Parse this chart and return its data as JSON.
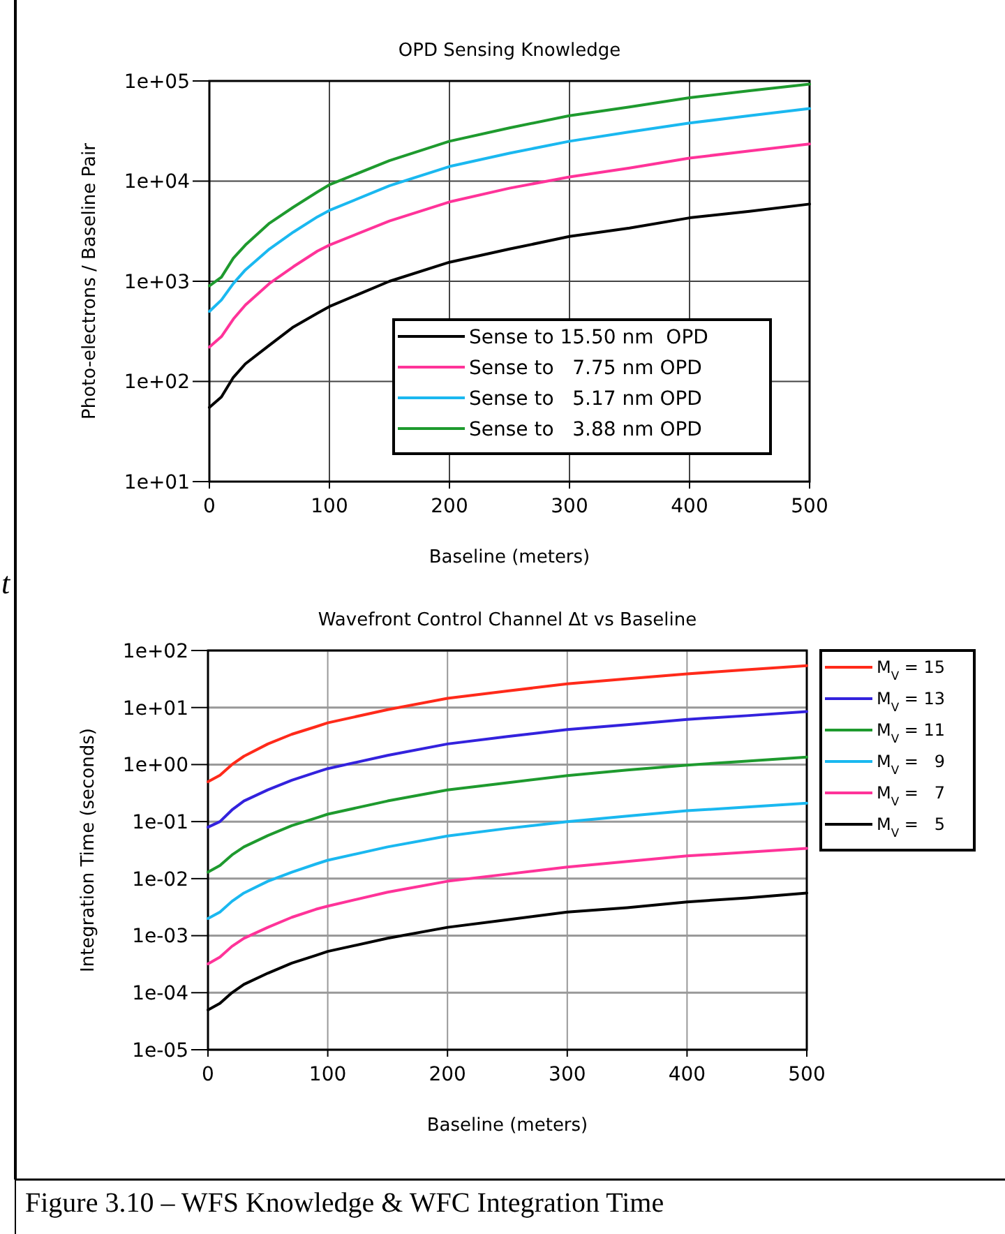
{
  "chart_data": [
    {
      "type": "line",
      "title": "OPD Sensing Knowledge",
      "xlabel": "Baseline (meters)",
      "ylabel": "Photo-electrons / Baseline Pair",
      "log": "y",
      "grid": true,
      "legend": "bottom right",
      "line_style": "solid",
      "marker": "none",
      "x": [
        0,
        10,
        20,
        30,
        50,
        70,
        90,
        100,
        150,
        200,
        250,
        300,
        350,
        400,
        450,
        500
      ],
      "xlim": [
        0,
        500
      ],
      "xticks": [
        0,
        100,
        200,
        300,
        400,
        500
      ],
      "ylim": [
        10,
        100000
      ],
      "yticks": [
        {
          "value": 10,
          "label": "1e+01"
        },
        {
          "value": 100,
          "label": "1e+02"
        },
        {
          "value": 1000,
          "label": "1e+03"
        },
        {
          "value": 10000,
          "label": "1e+04"
        },
        {
          "value": 100000,
          "label": "1e+05"
        }
      ],
      "annotations": [
        "t"
      ],
      "series": [
        {
          "name": "Sense to 15.50 nm  OPD",
          "color": "#000000",
          "values": [
            55,
            70,
            110,
            150,
            230,
            350,
            480,
            560,
            1000,
            1550,
            2100,
            2800,
            3400,
            4300,
            5000,
            5900
          ]
        },
        {
          "name": "Sense to   7.75 nm OPD",
          "color": "#ff3399",
          "values": [
            220,
            280,
            420,
            580,
            950,
            1400,
            2000,
            2300,
            4000,
            6200,
            8500,
            11000,
            13500,
            17000,
            20000,
            23500
          ]
        },
        {
          "name": "Sense to   5.17 nm OPD",
          "color": "#1ab8f0",
          "values": [
            500,
            650,
            950,
            1300,
            2100,
            3100,
            4400,
            5100,
            9000,
            14000,
            19000,
            25000,
            31000,
            38000,
            45000,
            53000
          ]
        },
        {
          "name": "Sense to   3.88 nm OPD",
          "color": "#1e9a2e",
          "values": [
            900,
            1100,
            1700,
            2300,
            3800,
            5500,
            7800,
            9200,
            16000,
            25000,
            34000,
            45000,
            55000,
            68000,
            80000,
            93000
          ]
        }
      ]
    },
    {
      "type": "line",
      "title": "Wavefront Control Channel Δt vs Baseline",
      "xlabel": "Baseline (meters)",
      "ylabel": "Integration Time (seconds)",
      "log": "y",
      "grid": true,
      "legend": "right",
      "line_style": "solid",
      "marker": "none",
      "x": [
        0,
        10,
        20,
        30,
        50,
        70,
        90,
        100,
        150,
        200,
        250,
        300,
        350,
        400,
        450,
        500
      ],
      "xlim": [
        0,
        500
      ],
      "xticks": [
        0,
        100,
        200,
        300,
        400,
        500
      ],
      "ylim": [
        1e-05,
        100
      ],
      "yticks": [
        {
          "value": 1e-05,
          "label": "1e-05"
        },
        {
          "value": 0.0001,
          "label": "1e-04"
        },
        {
          "value": 0.001,
          "label": "1e-03"
        },
        {
          "value": 0.01,
          "label": "1e-02"
        },
        {
          "value": 0.1,
          "label": "1e-01"
        },
        {
          "value": 1,
          "label": "1e+00"
        },
        {
          "value": 10,
          "label": "1e+01"
        },
        {
          "value": 100,
          "label": "1e+02"
        }
      ],
      "annotations": [
        "Figure 3.10 – WFS Knowledge & WFC Integration Time"
      ],
      "series": [
        {
          "name": "M$_{V}$ = 15",
          "color": "#ff2a1a",
          "values": [
            0.5,
            0.65,
            1,
            1.4,
            2.3,
            3.4,
            4.6,
            5.4,
            9.2,
            14.5,
            19.5,
            26,
            32,
            39,
            46,
            54
          ]
        },
        {
          "name": "M$_{V}$ = 13",
          "color": "#3322dd",
          "values": [
            0.08,
            0.1,
            0.16,
            0.23,
            0.36,
            0.53,
            0.73,
            0.85,
            1.45,
            2.3,
            3.1,
            4.1,
            5,
            6.2,
            7.2,
            8.5
          ]
        },
        {
          "name": "M$_{V}$ = 11",
          "color": "#1e9a2e",
          "values": [
            0.013,
            0.017,
            0.026,
            0.036,
            0.057,
            0.085,
            0.115,
            0.135,
            0.23,
            0.36,
            0.48,
            0.64,
            0.8,
            0.98,
            1.15,
            1.35
          ]
        },
        {
          "name": "M$_{V}$ =   9",
          "color": "#1ab8f0",
          "values": [
            0.002,
            0.0026,
            0.004,
            0.0056,
            0.009,
            0.013,
            0.018,
            0.021,
            0.036,
            0.056,
            0.076,
            0.1,
            0.125,
            0.155,
            0.18,
            0.21
          ]
        },
        {
          "name": "M$_{V}$ =   7",
          "color": "#ff3399",
          "values": [
            0.00032,
            0.00042,
            0.00065,
            0.0009,
            0.0014,
            0.0021,
            0.0029,
            0.0033,
            0.0058,
            0.009,
            0.012,
            0.016,
            0.02,
            0.025,
            0.029,
            0.034
          ]
        },
        {
          "name": "M$_{V}$ =   5",
          "color": "#000000",
          "values": [
            5e-05,
            6.5e-05,
            0.0001,
            0.00014,
            0.00022,
            0.00033,
            0.00045,
            0.00053,
            0.0009,
            0.0014,
            0.0019,
            0.0026,
            0.0031,
            0.0039,
            0.0046,
            0.0056
          ]
        }
      ]
    }
  ]
}
